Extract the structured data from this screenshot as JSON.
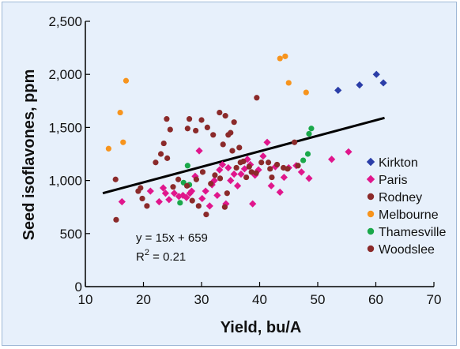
{
  "chart_data": {
    "type": "scatter",
    "title": "",
    "xlabel": "Yield, bu/A",
    "ylabel": "Seed isoflavones, ppm",
    "xlim": [
      10,
      70
    ],
    "ylim": [
      0,
      2500
    ],
    "x_ticks": [
      10,
      20,
      30,
      40,
      50,
      60,
      70
    ],
    "y_ticks": [
      0,
      500,
      1000,
      1500,
      2000,
      2500
    ],
    "x_tick_labels": [
      "10",
      "20",
      "30",
      "40",
      "50",
      "60",
      "70"
    ],
    "y_tick_labels": [
      "0",
      "500",
      "1,000",
      "1,500",
      "2,000",
      "2,500"
    ],
    "grid": false,
    "legend_position": "right",
    "series": [
      {
        "name": "Kirkton",
        "color": "#2b3ea8",
        "marker": "diamond",
        "points": [
          [
            53.5,
            1850
          ],
          [
            57.2,
            1900
          ],
          [
            60.1,
            2000
          ],
          [
            61.3,
            1920
          ]
        ]
      },
      {
        "name": "Paris",
        "color": "#e0168c",
        "marker": "diamond",
        "points": [
          [
            16.3,
            800
          ],
          [
            21.2,
            900
          ],
          [
            22.7,
            800
          ],
          [
            23.4,
            930
          ],
          [
            23.8,
            880
          ],
          [
            24.4,
            820
          ],
          [
            25.3,
            880
          ],
          [
            26.1,
            850
          ],
          [
            26.8,
            860
          ],
          [
            27.4,
            840
          ],
          [
            28.0,
            880
          ],
          [
            28.3,
            900
          ],
          [
            28.9,
            1040
          ],
          [
            29.6,
            1280
          ],
          [
            30.1,
            830
          ],
          [
            30.7,
            900
          ],
          [
            31.4,
            760
          ],
          [
            31.8,
            960
          ],
          [
            32.2,
            1000
          ],
          [
            32.7,
            860
          ],
          [
            33.1,
            1100
          ],
          [
            33.6,
            1150
          ],
          [
            34.2,
            780
          ],
          [
            34.6,
            1120
          ],
          [
            35.0,
            1000
          ],
          [
            35.6,
            1060
          ],
          [
            36.2,
            950
          ],
          [
            36.8,
            1060
          ],
          [
            37.4,
            1110
          ],
          [
            37.9,
            1200
          ],
          [
            38.4,
            1150
          ],
          [
            38.8,
            780
          ],
          [
            39.2,
            1050
          ],
          [
            39.8,
            1100
          ],
          [
            40.6,
            1230
          ],
          [
            41.3,
            1360
          ],
          [
            42.0,
            950
          ],
          [
            42.7,
            1130
          ],
          [
            43.5,
            890
          ],
          [
            44.2,
            1030
          ],
          [
            45.0,
            1120
          ],
          [
            46.3,
            1140
          ],
          [
            47.2,
            1080
          ],
          [
            48.5,
            1020
          ],
          [
            52.4,
            1200
          ],
          [
            55.3,
            1270
          ]
        ]
      },
      {
        "name": "Rodney",
        "color": "#8b2a2a",
        "marker": "circle",
        "points": [
          [
            19.1,
            900
          ],
          [
            23.5,
            1350
          ],
          [
            24.0,
            1580
          ],
          [
            27.6,
            1490
          ],
          [
            27.9,
            1580
          ],
          [
            29.0,
            1470
          ],
          [
            30.0,
            1570
          ],
          [
            31.0,
            1500
          ],
          [
            32.0,
            1430
          ],
          [
            33.1,
            1640
          ],
          [
            33.7,
            1340
          ],
          [
            34.1,
            1610
          ],
          [
            34.6,
            1430
          ],
          [
            35.0,
            1450
          ],
          [
            35.6,
            1550
          ],
          [
            36.5,
            1310
          ],
          [
            37.2,
            1180
          ],
          [
            38.2,
            1130
          ],
          [
            39.5,
            1780
          ],
          [
            41.5,
            1170
          ],
          [
            42.1,
            1030
          ],
          [
            43.0,
            1150
          ],
          [
            44.1,
            1120
          ],
          [
            46.6,
            1140
          ]
        ]
      },
      {
        "name": "Melbourne",
        "color": "#f7941d",
        "marker": "circle",
        "points": [
          [
            14.0,
            1300
          ],
          [
            16.0,
            1640
          ],
          [
            16.5,
            1360
          ],
          [
            17.0,
            1940
          ],
          [
            43.5,
            2150
          ],
          [
            44.4,
            2170
          ],
          [
            45.0,
            1920
          ],
          [
            48.0,
            1830
          ]
        ]
      },
      {
        "name": "Thamesville",
        "color": "#1aa84a",
        "marker": "circle",
        "points": [
          [
            26.3,
            790
          ],
          [
            26.9,
            980
          ],
          [
            27.6,
            1140
          ],
          [
            27.9,
            960
          ],
          [
            47.5,
            1190
          ],
          [
            48.3,
            1250
          ],
          [
            48.5,
            1440
          ],
          [
            48.9,
            1490
          ]
        ]
      },
      {
        "name": "Woodslee",
        "color": "#8b2a2a",
        "marker": "circle",
        "points": [
          [
            15.2,
            1010
          ],
          [
            15.3,
            630
          ],
          [
            19.5,
            930
          ],
          [
            19.8,
            830
          ],
          [
            20.6,
            760
          ],
          [
            22.1,
            1170
          ],
          [
            23.0,
            1250
          ],
          [
            24.1,
            1210
          ],
          [
            24.6,
            1480
          ],
          [
            25.1,
            940
          ],
          [
            26.0,
            1010
          ],
          [
            27.5,
            950
          ],
          [
            28.4,
            810
          ],
          [
            29.1,
            1010
          ],
          [
            29.5,
            760
          ],
          [
            30.2,
            1080
          ],
          [
            30.8,
            680
          ],
          [
            31.6,
            970
          ],
          [
            32.3,
            1050
          ],
          [
            33.2,
            1020
          ],
          [
            34.0,
            750
          ],
          [
            34.4,
            880
          ],
          [
            35.3,
            1280
          ],
          [
            36.0,
            1120
          ],
          [
            36.7,
            1170
          ],
          [
            37.7,
            1030
          ],
          [
            38.6,
            1080
          ],
          [
            39.4,
            1070
          ],
          [
            40.3,
            1170
          ],
          [
            41.8,
            1110
          ],
          [
            44.8,
            1110
          ],
          [
            46.0,
            1360
          ]
        ]
      }
    ],
    "trendline": {
      "from": [
        13,
        880
      ],
      "to": [
        61.5,
        1590
      ],
      "color": "#000000"
    },
    "annotations": {
      "equation": "y = 15x + 659",
      "r2_base": "R",
      "r2_sup": "2",
      "r2_value": " = 0.21"
    }
  },
  "colors": {
    "frame_background": "#e7f0fb",
    "frame_border": "#9eb8d6"
  }
}
